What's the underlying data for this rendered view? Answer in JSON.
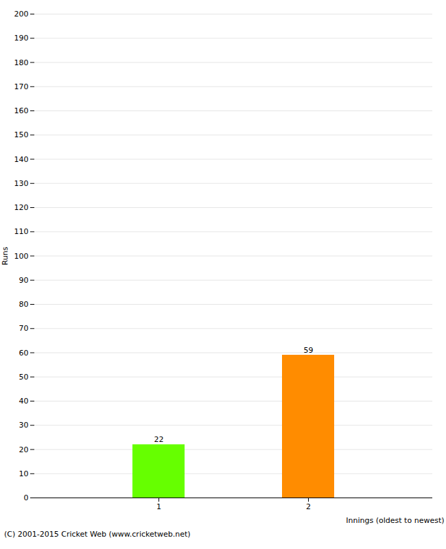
{
  "chart_data": {
    "type": "bar",
    "categories": [
      "1",
      "2"
    ],
    "values": [
      22,
      59
    ],
    "colors": [
      "#66ff00",
      "#ff8c00"
    ],
    "xlabel": "Innings (oldest to newest)",
    "ylabel": "Runs",
    "ylim": [
      0,
      200
    ],
    "yticks": [
      0,
      10,
      20,
      30,
      40,
      50,
      60,
      70,
      80,
      90,
      100,
      110,
      120,
      130,
      140,
      150,
      160,
      170,
      180,
      190,
      200
    ],
    "grid": true,
    "data_labels": true,
    "footer": "(C) 2001-2015 Cricket Web (www.cricketweb.net)"
  }
}
